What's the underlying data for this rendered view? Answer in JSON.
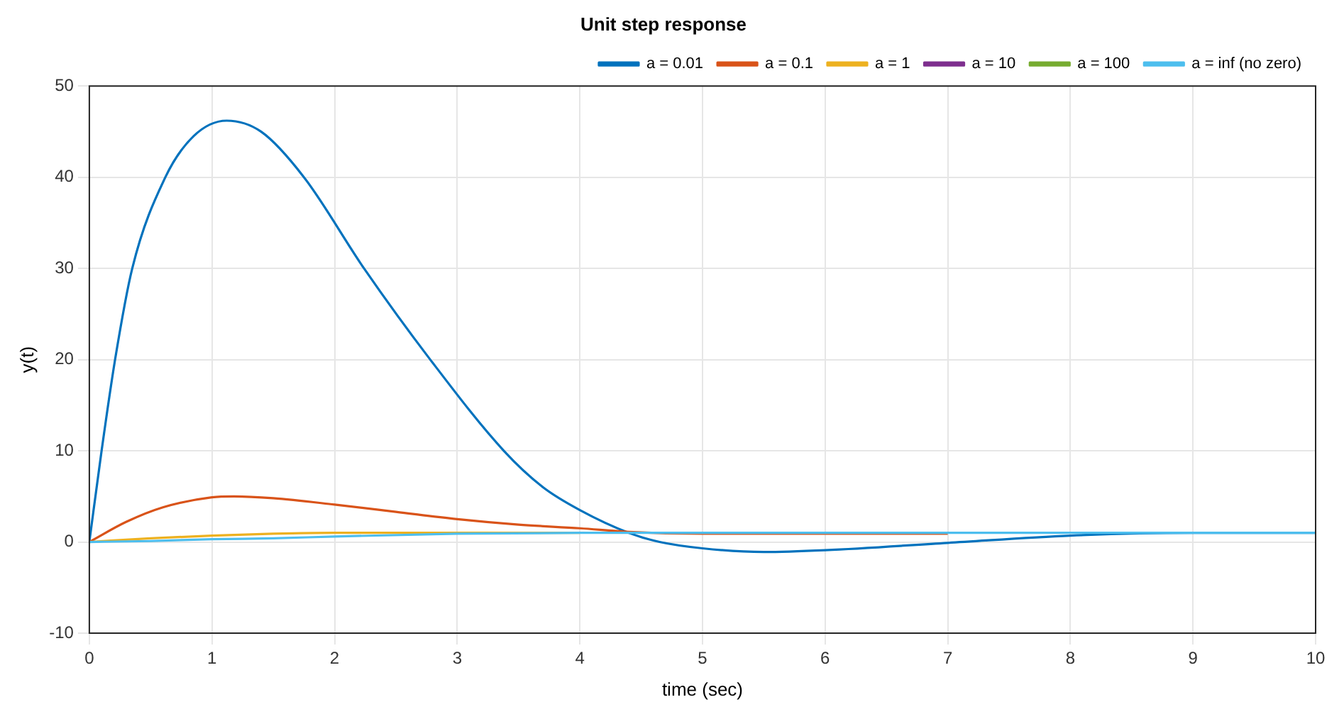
{
  "chart_data": {
    "type": "line",
    "title": "Unit step response",
    "xlabel": "time (sec)",
    "ylabel": "y(t)",
    "xlim": [
      0,
      10
    ],
    "xticks": [
      0,
      1,
      2,
      3,
      4,
      5,
      6,
      7,
      8,
      9,
      10
    ],
    "ylim": [
      -10,
      50
    ],
    "yticks": [
      -10,
      0,
      10,
      20,
      30,
      40,
      50
    ],
    "grid": true,
    "legend": "top right",
    "marker": "none",
    "line_style": "solid",
    "series": [
      {
        "name": "a = 0.01",
        "color": "#0072bd",
        "x": [
          0,
          0.1,
          0.21,
          0.35,
          0.62,
          0.85,
          1.12,
          1.4,
          1.75,
          2.24,
          2.78,
          3.38,
          3.7,
          4,
          4.4,
          4.65,
          5,
          5.5,
          6,
          7,
          8,
          9,
          10
        ],
        "values": [
          0,
          10,
          20,
          30,
          40,
          44.5,
          46.2,
          45,
          40,
          30,
          20,
          10,
          6,
          3.5,
          1,
          0,
          -0.7,
          -1.1,
          -0.9,
          -0.1,
          0.7,
          1,
          1
        ]
      },
      {
        "name": "a = 0.1",
        "color": "#d95319",
        "x": [
          0,
          0.3,
          0.6,
          1,
          1.18,
          1.5,
          2,
          2.5,
          3,
          3.5,
          4,
          4.4,
          5,
          6,
          7
        ],
        "values": [
          0,
          2.2,
          3.8,
          4.9,
          5,
          4.8,
          4.1,
          3.3,
          2.5,
          1.9,
          1.5,
          1.1,
          0.9,
          0.9,
          0.9
        ]
      },
      {
        "name": "a = 1",
        "color": "#edb120",
        "x": [
          0,
          0.5,
          1,
          1.5,
          2,
          3,
          4
        ],
        "values": [
          0,
          0.4,
          0.7,
          0.9,
          1,
          1,
          1
        ]
      },
      {
        "name": "a = 10",
        "color": "#7e2f8e"
      },
      {
        "name": "a = 100",
        "color": "#77ac30"
      },
      {
        "name": "a = inf (no zero)",
        "color": "#4dbeee",
        "x": [
          0,
          0.5,
          1,
          1.5,
          2,
          3,
          4,
          5,
          6,
          8,
          10
        ],
        "values": [
          0,
          0.1,
          0.3,
          0.4,
          0.6,
          0.9,
          1,
          1,
          1,
          1,
          1
        ]
      }
    ]
  }
}
